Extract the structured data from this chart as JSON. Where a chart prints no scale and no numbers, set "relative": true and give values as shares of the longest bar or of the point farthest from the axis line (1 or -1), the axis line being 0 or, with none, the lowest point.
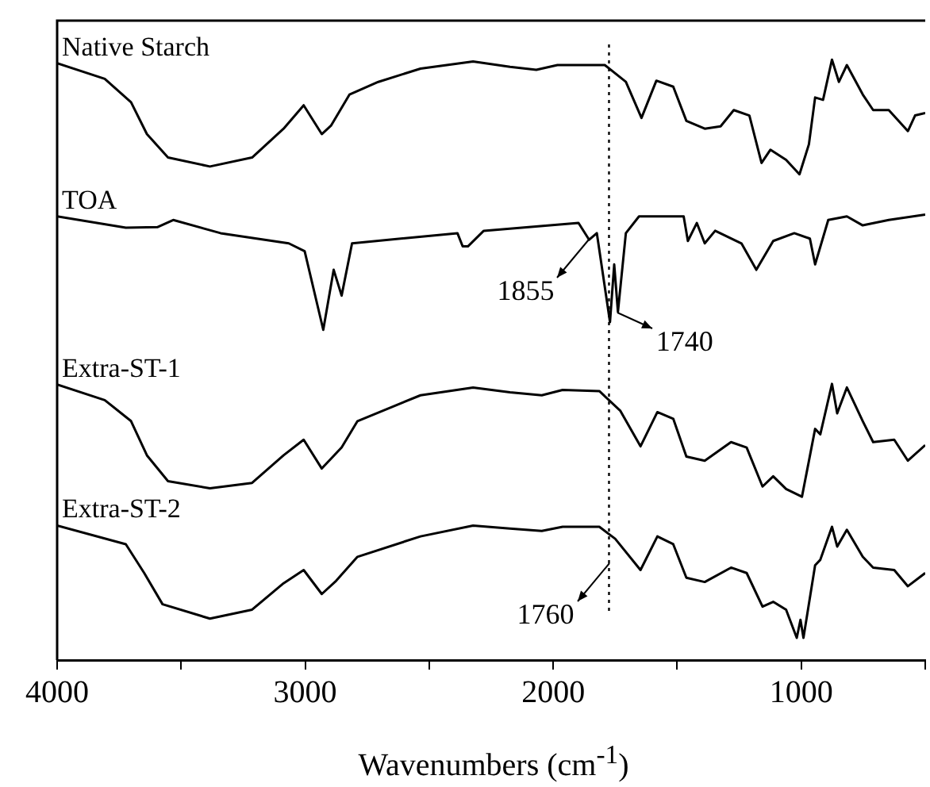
{
  "chart_data": {
    "type": "line",
    "relative": true,
    "xlabel": "Wavenumbers (cm$^{-1}$)",
    "xlim": [
      4000,
      500
    ],
    "xticks": [
      4000,
      {
        "value": 3500,
        "label": null
      },
      3000,
      {
        "value": 2500,
        "label": null
      },
      2000,
      {
        "value": 1500,
        "label": null
      },
      1000,
      {
        "value": 500,
        "label": null
      }
    ],
    "tick_labels": "x",
    "grid": false,
    "legend": false,
    "marker": "none",
    "line_style": "solid",
    "series": [
      {
        "name": "Native Starch",
        "color": "#000000",
        "x": [
          4000,
          3808,
          3702,
          3638,
          3553,
          3384,
          3214,
          3087,
          3006,
          2933,
          2896,
          2821,
          2705,
          2535,
          2323,
          2174,
          2068,
          1983,
          1792,
          1707,
          1644,
          1584,
          1516,
          1463,
          1389,
          1325,
          1272,
          1209,
          1160,
          1124,
          1061,
          1007,
          969,
          944,
          912,
          876,
          848,
          816,
          752,
          710,
          647,
          570,
          541,
          500
        ],
        "values": [
          0.994,
          0.968,
          0.929,
          0.876,
          0.837,
          0.822,
          0.837,
          0.885,
          0.924,
          0.876,
          0.89,
          0.942,
          0.963,
          0.985,
          0.997,
          0.988,
          0.983,
          0.991,
          0.991,
          0.963,
          0.903,
          0.965,
          0.955,
          0.898,
          0.885,
          0.889,
          0.916,
          0.907,
          0.828,
          0.85,
          0.833,
          0.809,
          0.859,
          0.937,
          0.933,
          1.0,
          0.963,
          0.991,
          0.942,
          0.916,
          0.916,
          0.881,
          0.907,
          0.911
        ]
      },
      {
        "name": "TOA",
        "color": "#000000",
        "x": [
          4000,
          3723,
          3596,
          3532,
          3341,
          3066,
          3002,
          2927,
          2885,
          2853,
          2811,
          2386,
          2365,
          2344,
          2280,
          1898,
          1855,
          1824,
          1771,
          1754,
          1739,
          1707,
          1654,
          1474,
          1457,
          1421,
          1389,
          1347,
          1241,
          1181,
          1113,
          1028,
          965,
          944,
          891,
          816,
          752,
          647,
          500
        ],
        "values": [
          0.739,
          0.72,
          0.721,
          0.733,
          0.711,
          0.694,
          0.681,
          0.55,
          0.65,
          0.607,
          0.694,
          0.711,
          0.689,
          0.689,
          0.715,
          0.728,
          0.7,
          0.711,
          0.563,
          0.659,
          0.58,
          0.711,
          0.739,
          0.739,
          0.698,
          0.728,
          0.694,
          0.715,
          0.694,
          0.65,
          0.698,
          0.711,
          0.702,
          0.659,
          0.733,
          0.739,
          0.724,
          0.733,
          0.742
        ]
      },
      {
        "name": "Extra-ST-1",
        "color": "#000000",
        "x": [
          4000,
          3808,
          3702,
          3638,
          3553,
          3384,
          3214,
          3087,
          3006,
          2933,
          2853,
          2789,
          2535,
          2323,
          2174,
          2046,
          1962,
          1814,
          1729,
          1648,
          1580,
          1516,
          1463,
          1389,
          1283,
          1220,
          1156,
          1113,
          1061,
          997,
          944,
          923,
          876,
          855,
          816,
          752,
          710,
          625,
          570,
          500
        ],
        "values": [
          0.459,
          0.433,
          0.398,
          0.341,
          0.298,
          0.286,
          0.295,
          0.341,
          0.367,
          0.319,
          0.354,
          0.398,
          0.441,
          0.454,
          0.446,
          0.441,
          0.45,
          0.448,
          0.415,
          0.356,
          0.413,
          0.402,
          0.339,
          0.332,
          0.363,
          0.354,
          0.289,
          0.306,
          0.285,
          0.272,
          0.385,
          0.376,
          0.46,
          0.411,
          0.454,
          0.398,
          0.363,
          0.367,
          0.332,
          0.358
        ]
      },
      {
        "name": "Extra-ST-2",
        "color": "#000000",
        "x": [
          4000,
          3723,
          3649,
          3575,
          3384,
          3214,
          3087,
          3006,
          2933,
          2875,
          2789,
          2535,
          2323,
          2174,
          2046,
          1962,
          1814,
          1750,
          1648,
          1580,
          1516,
          1463,
          1389,
          1283,
          1220,
          1156,
          1113,
          1061,
          1018,
          1003,
          991,
          944,
          923,
          876,
          855,
          816,
          752,
          710,
          625,
          570,
          500
        ],
        "values": [
          0.224,
          0.193,
          0.145,
          0.093,
          0.069,
          0.084,
          0.128,
          0.15,
          0.11,
          0.132,
          0.172,
          0.206,
          0.224,
          0.219,
          0.215,
          0.222,
          0.222,
          0.202,
          0.15,
          0.206,
          0.193,
          0.137,
          0.13,
          0.154,
          0.145,
          0.089,
          0.097,
          0.084,
          0.037,
          0.067,
          0.037,
          0.158,
          0.167,
          0.222,
          0.189,
          0.217,
          0.172,
          0.154,
          0.15,
          0.123,
          0.145
        ]
      }
    ],
    "ref_lines": [
      {
        "axis": "x",
        "value": 1775,
        "label": null,
        "line_style": "dotted"
      }
    ],
    "annotations": [
      {
        "text": "1855",
        "x": 1855,
        "y": 0.7
      },
      {
        "text": "1740",
        "x": 1739,
        "y": 0.58
      },
      {
        "text": "1760",
        "x": 1775,
        "y": 0.16
      }
    ]
  }
}
